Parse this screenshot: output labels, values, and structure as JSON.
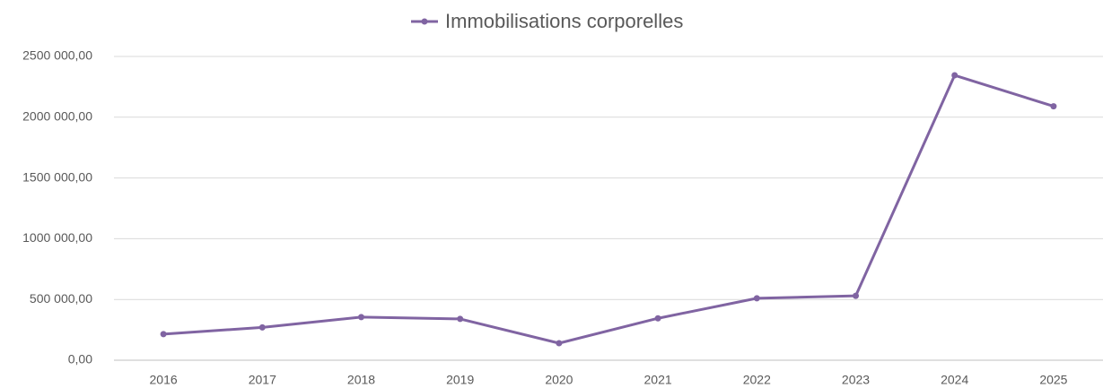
{
  "chart_data": {
    "type": "line",
    "categories": [
      "2016",
      "2017",
      "2018",
      "2019",
      "2020",
      "2021",
      "2022",
      "2023",
      "2024",
      "2025"
    ],
    "series": [
      {
        "name": "Immobilisations corporelles",
        "color": "#8064a2",
        "values": [
          215000,
          270000,
          355000,
          340000,
          140000,
          345000,
          510000,
          530000,
          2345000,
          2090000
        ]
      }
    ],
    "ylim": [
      0,
      2500000
    ],
    "yticks": [
      {
        "value": 0,
        "label": "0,00"
      },
      {
        "value": 500000,
        "label": "500 000,00"
      },
      {
        "value": 1000000,
        "label": "1000 000,00"
      },
      {
        "value": 1500000,
        "label": "1500 000,00"
      },
      {
        "value": 2000000,
        "label": "2000 000,00"
      },
      {
        "value": 2500000,
        "label": "2500 000,00"
      }
    ],
    "grid": true,
    "legend": "top"
  }
}
